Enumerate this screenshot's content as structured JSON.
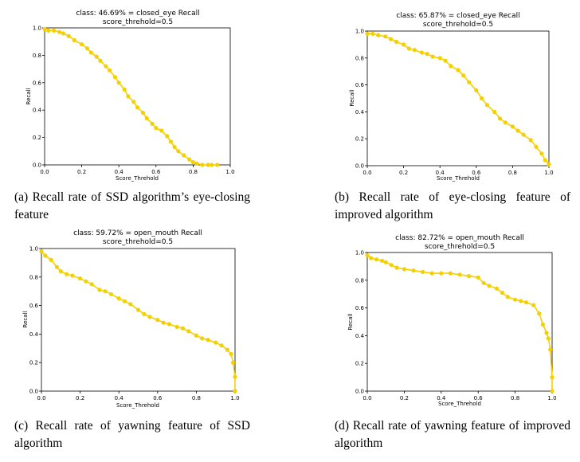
{
  "chart_data": [
    {
      "type": "line",
      "title": "class: 46.69% = closed_eye Recall",
      "subtitle": "score_threhold=0.5",
      "xlabel": "Score_Threhold",
      "ylabel": "Recall",
      "xlim": [
        0,
        1
      ],
      "ylim": [
        0,
        1
      ],
      "xticks": [
        "0.0",
        "0.2",
        "0.4",
        "0.6",
        "0.8",
        "1.0"
      ],
      "yticks": [
        "0.0",
        "0.2",
        "0.4",
        "0.6",
        "0.8",
        "1.0"
      ],
      "color": "#f5d000",
      "caption": "(a) Recall rate of SSD algorithm’s eye-closing feature",
      "series": [
        {
          "name": "closed_eye",
          "x": [
            0.0,
            0.02,
            0.05,
            0.08,
            0.1,
            0.13,
            0.16,
            0.2,
            0.23,
            0.25,
            0.28,
            0.3,
            0.33,
            0.35,
            0.38,
            0.4,
            0.43,
            0.45,
            0.48,
            0.5,
            0.53,
            0.55,
            0.58,
            0.6,
            0.63,
            0.66,
            0.68,
            0.7,
            0.72,
            0.75,
            0.78,
            0.8,
            0.82,
            0.85,
            0.88,
            0.9,
            0.93
          ],
          "y": [
            0.99,
            0.98,
            0.98,
            0.97,
            0.96,
            0.94,
            0.91,
            0.88,
            0.85,
            0.82,
            0.79,
            0.76,
            0.72,
            0.69,
            0.64,
            0.6,
            0.55,
            0.5,
            0.46,
            0.42,
            0.38,
            0.34,
            0.3,
            0.27,
            0.25,
            0.21,
            0.17,
            0.13,
            0.1,
            0.07,
            0.04,
            0.02,
            0.01,
            0.0,
            0.0,
            0.0,
            0.0
          ]
        }
      ]
    },
    {
      "type": "line",
      "title": "class: 65.87% = closed_eye Recall",
      "subtitle": "score_threhold=0.5",
      "xlabel": "Score_Threhold",
      "ylabel": "Recall",
      "xlim": [
        0,
        1
      ],
      "ylim": [
        0,
        1
      ],
      "xticks": [
        "0.0",
        "0.2",
        "0.4",
        "0.6",
        "0.8",
        "1.0"
      ],
      "yticks": [
        "0.0",
        "0.2",
        "0.4",
        "0.6",
        "0.8",
        "1.0"
      ],
      "color": "#f5d000",
      "caption": "(b) Recall rate of eye-closing feature of improved algorithm",
      "series": [
        {
          "name": "closed_eye",
          "x": [
            0.0,
            0.03,
            0.06,
            0.1,
            0.13,
            0.16,
            0.2,
            0.23,
            0.26,
            0.3,
            0.33,
            0.36,
            0.4,
            0.43,
            0.46,
            0.5,
            0.53,
            0.56,
            0.6,
            0.63,
            0.66,
            0.7,
            0.73,
            0.76,
            0.8,
            0.83,
            0.86,
            0.9,
            0.93,
            0.96,
            0.98,
            1.0
          ],
          "y": [
            0.98,
            0.98,
            0.97,
            0.96,
            0.94,
            0.92,
            0.9,
            0.87,
            0.86,
            0.84,
            0.83,
            0.81,
            0.8,
            0.78,
            0.74,
            0.71,
            0.67,
            0.62,
            0.56,
            0.5,
            0.45,
            0.4,
            0.35,
            0.32,
            0.29,
            0.26,
            0.23,
            0.19,
            0.14,
            0.09,
            0.04,
            0.01
          ]
        }
      ]
    },
    {
      "type": "line",
      "title": "class: 59.72% = open_mouth Recall",
      "subtitle": "score_threhold=0.5",
      "xlabel": "Score_Threhold",
      "ylabel": "Recall",
      "xlim": [
        0,
        1
      ],
      "ylim": [
        0,
        1
      ],
      "xticks": [
        "0.0",
        "0.2",
        "0.4",
        "0.6",
        "0.8",
        "1.0"
      ],
      "yticks": [
        "0.0",
        "0.2",
        "0.4",
        "0.6",
        "0.8",
        "1.0"
      ],
      "color": "#f5d000",
      "caption": "(c) Recall rate of yawning feature of SSD algorithm",
      "series": [
        {
          "name": "open_mouth",
          "x": [
            0.0,
            0.02,
            0.05,
            0.08,
            0.1,
            0.13,
            0.16,
            0.2,
            0.23,
            0.26,
            0.3,
            0.33,
            0.36,
            0.4,
            0.43,
            0.46,
            0.5,
            0.53,
            0.56,
            0.6,
            0.63,
            0.66,
            0.7,
            0.73,
            0.76,
            0.8,
            0.83,
            0.86,
            0.9,
            0.93,
            0.96,
            0.98,
            0.99,
            1.0,
            1.0
          ],
          "y": [
            0.98,
            0.95,
            0.92,
            0.87,
            0.84,
            0.82,
            0.81,
            0.79,
            0.77,
            0.75,
            0.71,
            0.7,
            0.68,
            0.65,
            0.63,
            0.61,
            0.57,
            0.54,
            0.52,
            0.5,
            0.48,
            0.47,
            0.45,
            0.44,
            0.42,
            0.39,
            0.37,
            0.36,
            0.34,
            0.32,
            0.29,
            0.26,
            0.2,
            0.1,
            0.0
          ]
        }
      ]
    },
    {
      "type": "line",
      "title": "class: 82.72% = open_mouth Recall",
      "subtitle": "score_threhold=0.5",
      "xlabel": "Score_Threhold",
      "ylabel": "Recall",
      "xlim": [
        0,
        1
      ],
      "ylim": [
        0,
        1
      ],
      "xticks": [
        "0.0",
        "0.2",
        "0.4",
        "0.6",
        "0.8",
        "1.0"
      ],
      "yticks": [
        "0.0",
        "0.2",
        "0.4",
        "0.6",
        "0.8",
        "1.0"
      ],
      "color": "#f5d000",
      "caption": "(d) Recall rate of yawning feature of improved algorithm",
      "series": [
        {
          "name": "open_mouth",
          "x": [
            0.0,
            0.02,
            0.05,
            0.08,
            0.1,
            0.13,
            0.16,
            0.2,
            0.25,
            0.3,
            0.35,
            0.4,
            0.45,
            0.5,
            0.55,
            0.6,
            0.63,
            0.66,
            0.7,
            0.73,
            0.76,
            0.8,
            0.83,
            0.86,
            0.9,
            0.93,
            0.95,
            0.97,
            0.98,
            0.99,
            1.0,
            1.0
          ],
          "y": [
            0.98,
            0.96,
            0.95,
            0.94,
            0.93,
            0.91,
            0.89,
            0.88,
            0.87,
            0.86,
            0.85,
            0.85,
            0.85,
            0.84,
            0.83,
            0.82,
            0.78,
            0.76,
            0.74,
            0.71,
            0.68,
            0.66,
            0.65,
            0.64,
            0.62,
            0.56,
            0.48,
            0.42,
            0.38,
            0.3,
            0.1,
            0.0
          ]
        }
      ]
    }
  ]
}
